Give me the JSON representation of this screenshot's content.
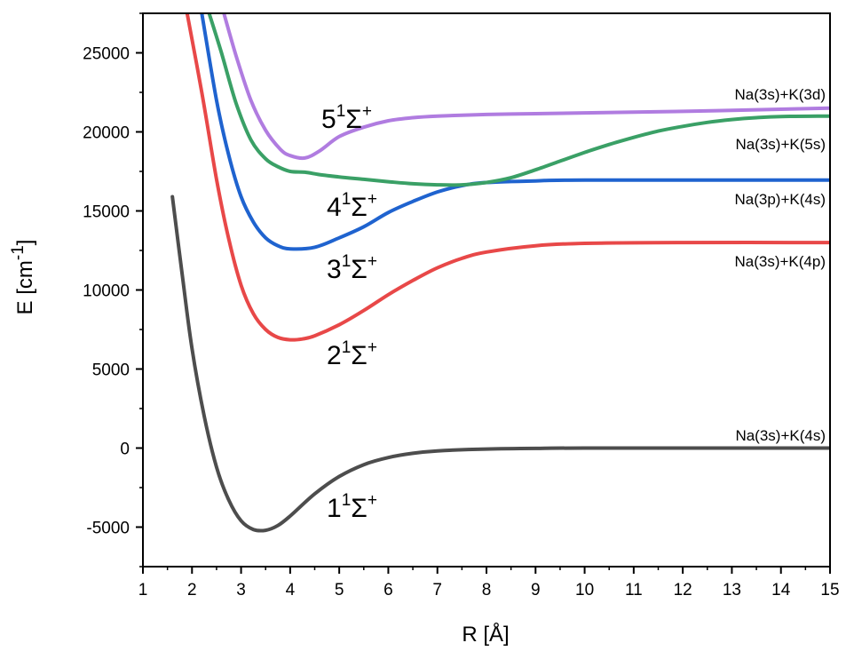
{
  "chart_data": {
    "type": "line",
    "title": "",
    "xlabel": "R [Å]",
    "ylabel_parts": {
      "main": "E [cm",
      "exp": "-1",
      "close": "]"
    },
    "xlim": [
      1,
      15
    ],
    "ylim": [
      -7500,
      27500
    ],
    "xticks": [
      "1",
      "2",
      "3",
      "4",
      "5",
      "6",
      "7",
      "8",
      "9",
      "10",
      "11",
      "12",
      "13",
      "14",
      "15"
    ],
    "yticks": [
      "-5000",
      "0",
      "5000",
      "10000",
      "15000",
      "20000",
      "25000"
    ],
    "grid": false,
    "legend": "none",
    "series": [
      {
        "color": "#4d4d4d",
        "state": {
          "n": "1",
          "s": "1",
          "sym": "Σ",
          "p": "+"
        },
        "asymptote": "Na(3s)+K(4s)",
        "points": [
          [
            1.6,
            15900
          ],
          [
            1.8,
            11000
          ],
          [
            2.0,
            6300
          ],
          [
            2.25,
            2000
          ],
          [
            2.5,
            -1200
          ],
          [
            2.75,
            -3300
          ],
          [
            3.0,
            -4600
          ],
          [
            3.25,
            -5150
          ],
          [
            3.5,
            -5200
          ],
          [
            3.75,
            -4900
          ],
          [
            4.0,
            -4300
          ],
          [
            4.5,
            -2900
          ],
          [
            5.0,
            -1800
          ],
          [
            5.5,
            -1050
          ],
          [
            6.0,
            -600
          ],
          [
            6.5,
            -330
          ],
          [
            7.0,
            -180
          ],
          [
            8.0,
            -60
          ],
          [
            9.0,
            -20
          ],
          [
            10.0,
            0
          ],
          [
            15.0,
            0
          ]
        ]
      },
      {
        "color": "#e84848",
        "state": {
          "n": "2",
          "s": "1",
          "sym": "Σ",
          "p": "+"
        },
        "asymptote": "Na(3s)+K(4p)",
        "points": [
          [
            1.9,
            27500
          ],
          [
            2.2,
            22500
          ],
          [
            2.5,
            17000
          ],
          [
            2.75,
            13200
          ],
          [
            3.0,
            10300
          ],
          [
            3.25,
            8500
          ],
          [
            3.5,
            7500
          ],
          [
            3.75,
            7000
          ],
          [
            4.0,
            6850
          ],
          [
            4.25,
            6900
          ],
          [
            4.5,
            7100
          ],
          [
            5.0,
            7800
          ],
          [
            5.5,
            8700
          ],
          [
            6.0,
            9700
          ],
          [
            6.5,
            10600
          ],
          [
            7.0,
            11400
          ],
          [
            7.5,
            12000
          ],
          [
            8.0,
            12400
          ],
          [
            9.0,
            12800
          ],
          [
            10.0,
            12950
          ],
          [
            12.0,
            13000
          ],
          [
            15.0,
            13000
          ]
        ]
      },
      {
        "color": "#1f63cf",
        "state": {
          "n": "3",
          "s": "1",
          "sym": "Σ",
          "p": "+"
        },
        "asymptote": "Na(3p)+K(4s)",
        "points": [
          [
            2.2,
            27500
          ],
          [
            2.5,
            22000
          ],
          [
            2.75,
            18500
          ],
          [
            3.0,
            15900
          ],
          [
            3.25,
            14300
          ],
          [
            3.5,
            13300
          ],
          [
            3.75,
            12800
          ],
          [
            4.0,
            12600
          ],
          [
            4.5,
            12700
          ],
          [
            5.0,
            13300
          ],
          [
            5.5,
            14000
          ],
          [
            6.0,
            14900
          ],
          [
            6.5,
            15600
          ],
          [
            7.0,
            16200
          ],
          [
            7.5,
            16600
          ],
          [
            8.0,
            16800
          ],
          [
            9.0,
            16900
          ],
          [
            10.0,
            16950
          ],
          [
            15.0,
            16950
          ]
        ]
      },
      {
        "color": "#3aa066",
        "state": {
          "n": "4",
          "s": "1",
          "sym": "Σ",
          "p": "+"
        },
        "asymptote": "Na(3s)+K(5s)",
        "points": [
          [
            2.35,
            27500
          ],
          [
            2.6,
            25000
          ],
          [
            2.9,
            21800
          ],
          [
            3.2,
            19500
          ],
          [
            3.5,
            18300
          ],
          [
            3.75,
            17800
          ],
          [
            4.0,
            17500
          ],
          [
            4.3,
            17450
          ],
          [
            4.6,
            17300
          ],
          [
            5.0,
            17150
          ],
          [
            5.5,
            17000
          ],
          [
            6.0,
            16850
          ],
          [
            6.5,
            16720
          ],
          [
            7.0,
            16650
          ],
          [
            7.5,
            16650
          ],
          [
            8.0,
            16800
          ],
          [
            8.5,
            17100
          ],
          [
            9.0,
            17600
          ],
          [
            9.5,
            18150
          ],
          [
            10.0,
            18700
          ],
          [
            10.5,
            19200
          ],
          [
            11.0,
            19650
          ],
          [
            11.5,
            20050
          ],
          [
            12.0,
            20350
          ],
          [
            12.5,
            20600
          ],
          [
            13.0,
            20780
          ],
          [
            13.5,
            20900
          ],
          [
            14.0,
            20970
          ],
          [
            15.0,
            21000
          ]
        ]
      },
      {
        "color": "#b07ce0",
        "state": {
          "n": "5",
          "s": "1",
          "sym": "Σ",
          "p": "+"
        },
        "asymptote": "Na(3s)+K(3d)",
        "points": [
          [
            2.65,
            27500
          ],
          [
            2.9,
            24800
          ],
          [
            3.2,
            22000
          ],
          [
            3.5,
            20100
          ],
          [
            3.8,
            18900
          ],
          [
            4.0,
            18500
          ],
          [
            4.3,
            18350
          ],
          [
            4.6,
            18800
          ],
          [
            5.0,
            19700
          ],
          [
            5.5,
            20300
          ],
          [
            6.0,
            20700
          ],
          [
            6.5,
            20900
          ],
          [
            7.0,
            21000
          ],
          [
            8.0,
            21100
          ],
          [
            9.0,
            21150
          ],
          [
            10.0,
            21200
          ],
          [
            12.0,
            21300
          ],
          [
            14.0,
            21430
          ],
          [
            15.0,
            21500
          ]
        ]
      }
    ]
  }
}
